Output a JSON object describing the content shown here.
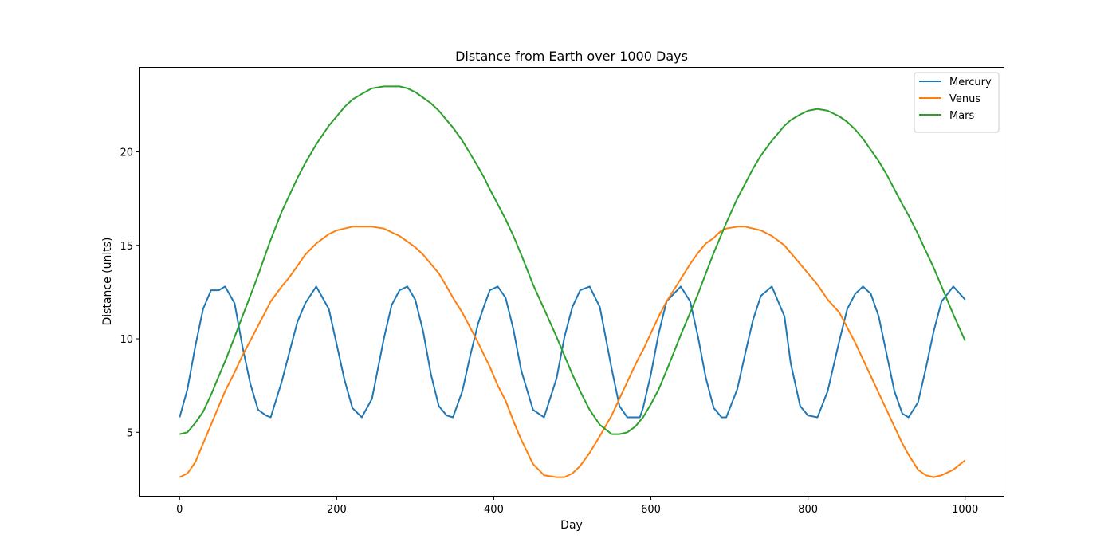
{
  "chart_data": {
    "type": "line",
    "title": "Distance from Earth over 1000 Days",
    "xlabel": "Day",
    "ylabel": "Distance (units)",
    "xlim": [
      -50,
      1049
    ],
    "ylim": [
      1.6,
      24.5
    ],
    "xticks": [
      0,
      200,
      400,
      600,
      800,
      1000
    ],
    "yticks": [
      5,
      10,
      15,
      20
    ],
    "grid": false,
    "legend": "top-right",
    "x": [
      0,
      10,
      20,
      30,
      40,
      50,
      58,
      70,
      80,
      90,
      100,
      110,
      116,
      130,
      140,
      150,
      160,
      174,
      190,
      200,
      210,
      220,
      232,
      245,
      260,
      270,
      280,
      290,
      300,
      310,
      320,
      330,
      340,
      348,
      360,
      370,
      380,
      388,
      395,
      405,
      415,
      425,
      435,
      450,
      464,
      480,
      490,
      500,
      510,
      522,
      535,
      550,
      560,
      570,
      580,
      586,
      590,
      600,
      610,
      620,
      638,
      650,
      660,
      670,
      680,
      690,
      696,
      710,
      720,
      730,
      740,
      754,
      770,
      778,
      790,
      800,
      812,
      825,
      840,
      850,
      860,
      870,
      880,
      890,
      900,
      910,
      920,
      928,
      940,
      950,
      960,
      970,
      985,
      1000
    ],
    "series": [
      {
        "name": "Mercury",
        "color": "#1f77b4",
        "values": [
          5.8,
          7.3,
          9.6,
          11.6,
          12.6,
          12.6,
          12.8,
          11.9,
          9.6,
          7.6,
          6.2,
          5.9,
          5.8,
          7.7,
          9.3,
          10.9,
          11.9,
          12.8,
          11.6,
          9.7,
          7.8,
          6.3,
          5.8,
          6.8,
          10.0,
          11.8,
          12.6,
          12.8,
          12.1,
          10.4,
          8.1,
          6.4,
          5.9,
          5.8,
          7.2,
          9.1,
          10.8,
          11.8,
          12.6,
          12.8,
          12.2,
          10.5,
          8.3,
          6.2,
          5.8,
          7.9,
          10.1,
          11.7,
          12.6,
          12.8,
          11.7,
          8.4,
          6.4,
          5.8,
          5.8,
          5.8,
          6.3,
          8.1,
          10.3,
          12.0,
          12.8,
          12.0,
          10.1,
          7.9,
          6.3,
          5.8,
          5.8,
          7.3,
          9.2,
          11.0,
          12.3,
          12.8,
          11.2,
          8.7,
          6.4,
          5.9,
          5.8,
          7.2,
          9.9,
          11.6,
          12.4,
          12.8,
          12.4,
          11.2,
          9.2,
          7.2,
          6.0,
          5.8,
          6.6,
          8.4,
          10.4,
          12.0,
          12.8,
          12.1
        ]
      },
      {
        "name": "Venus",
        "color": "#ff7f0e",
        "values": [
          2.6,
          2.8,
          3.4,
          4.4,
          5.4,
          6.4,
          7.2,
          8.2,
          9.1,
          9.9,
          10.7,
          11.5,
          12.0,
          12.8,
          13.3,
          13.9,
          14.5,
          15.1,
          15.6,
          15.8,
          15.9,
          16.0,
          16.0,
          16.0,
          15.9,
          15.7,
          15.5,
          15.2,
          14.9,
          14.5,
          14.0,
          13.5,
          12.8,
          12.2,
          11.4,
          10.6,
          9.8,
          9.1,
          8.5,
          7.5,
          6.7,
          5.6,
          4.6,
          3.3,
          2.7,
          2.6,
          2.6,
          2.8,
          3.2,
          3.9,
          4.8,
          5.9,
          6.8,
          7.7,
          8.6,
          9.1,
          9.4,
          10.3,
          11.2,
          12.0,
          13.2,
          14.0,
          14.6,
          15.1,
          15.4,
          15.8,
          15.9,
          16.0,
          16.0,
          15.9,
          15.8,
          15.5,
          15.0,
          14.6,
          14.0,
          13.5,
          12.9,
          12.1,
          11.4,
          10.6,
          9.8,
          8.9,
          8.0,
          7.1,
          6.2,
          5.3,
          4.4,
          3.8,
          3.0,
          2.7,
          2.6,
          2.7,
          3.0,
          3.5
        ]
      },
      {
        "name": "Mars",
        "color": "#2ca02c",
        "values": [
          4.9,
          5.0,
          5.5,
          6.1,
          7.0,
          8.0,
          8.8,
          10.1,
          11.2,
          12.3,
          13.4,
          14.6,
          15.3,
          16.8,
          17.7,
          18.6,
          19.4,
          20.4,
          21.4,
          21.9,
          22.4,
          22.8,
          23.1,
          23.4,
          23.5,
          23.5,
          23.5,
          23.4,
          23.2,
          22.9,
          22.6,
          22.2,
          21.7,
          21.3,
          20.6,
          19.9,
          19.2,
          18.6,
          18.0,
          17.2,
          16.4,
          15.5,
          14.5,
          12.9,
          11.6,
          10.1,
          9.1,
          8.1,
          7.2,
          6.2,
          5.4,
          4.9,
          4.9,
          5.0,
          5.3,
          5.6,
          5.8,
          6.5,
          7.3,
          8.3,
          10.2,
          11.4,
          12.4,
          13.5,
          14.6,
          15.6,
          16.2,
          17.5,
          18.3,
          19.1,
          19.8,
          20.6,
          21.4,
          21.7,
          22.0,
          22.2,
          22.3,
          22.2,
          21.9,
          21.6,
          21.2,
          20.7,
          20.1,
          19.5,
          18.8,
          18.0,
          17.2,
          16.6,
          15.6,
          14.7,
          13.8,
          12.8,
          11.3,
          9.9
        ]
      }
    ]
  }
}
